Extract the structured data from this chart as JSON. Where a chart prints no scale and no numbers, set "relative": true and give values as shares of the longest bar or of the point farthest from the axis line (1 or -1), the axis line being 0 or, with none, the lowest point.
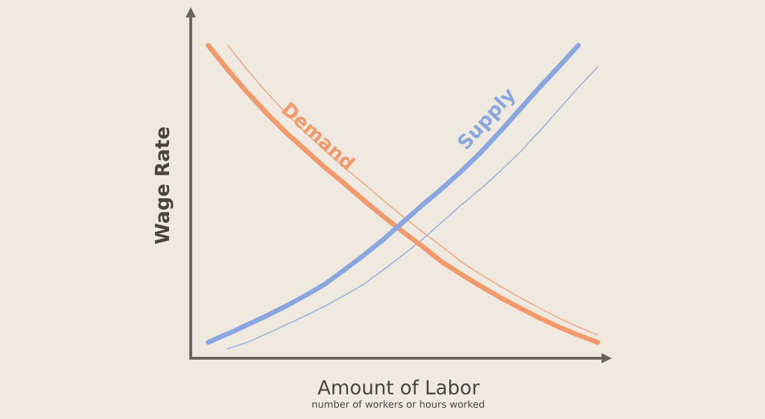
{
  "chart_data": {
    "type": "line",
    "relative": true,
    "xlabel": "Amount of Labor",
    "ylabel": "Wage Rate",
    "annotations": [
      "number of workers or hours worked"
    ],
    "categories": [
      null,
      null,
      null,
      null,
      null,
      null,
      null,
      null,
      null,
      null,
      null,
      null,
      null,
      null,
      null,
      null,
      null,
      null,
      null,
      null,
      null
    ],
    "series": [
      {
        "name": "Demand",
        "color": "#f4996b",
        "values": [
          1.0,
          0.922,
          0.85,
          0.783,
          0.721,
          0.665,
          0.609,
          0.558,
          0.504,
          0.453,
          0.404,
          0.357,
          0.308,
          0.268,
          0.23,
          0.194,
          0.161,
          0.129,
          0.1,
          0.074,
          0.051
        ]
      },
      {
        "color": "#f4996b",
        "values": [
          null,
          1.0,
          0.922,
          0.85,
          0.783,
          0.721,
          0.665,
          0.609,
          0.558,
          0.504,
          0.453,
          0.404,
          0.357,
          0.308,
          0.268,
          0.23,
          0.194,
          0.161,
          0.129,
          0.1,
          0.074
        ]
      },
      {
        "name": "Supply",
        "color": "#8aa6e0",
        "values": [
          0.051,
          0.078,
          0.107,
          0.136,
          0.167,
          0.201,
          0.237,
          0.283,
          0.33,
          0.38,
          0.435,
          0.49,
          0.542,
          0.598,
          0.658,
          0.725,
          0.795,
          0.865,
          0.931,
          1.0,
          null
        ]
      },
      {
        "color": "#8aa6e0",
        "values": [
          null,
          0.03,
          0.051,
          0.078,
          0.107,
          0.136,
          0.167,
          0.201,
          0.237,
          0.283,
          0.33,
          0.38,
          0.435,
          0.49,
          0.542,
          0.598,
          0.658,
          0.725,
          0.795,
          0.865,
          0.931
        ]
      }
    ],
    "legend": false,
    "tick_labels": false,
    "marker": "none",
    "line_style": "solid"
  }
}
